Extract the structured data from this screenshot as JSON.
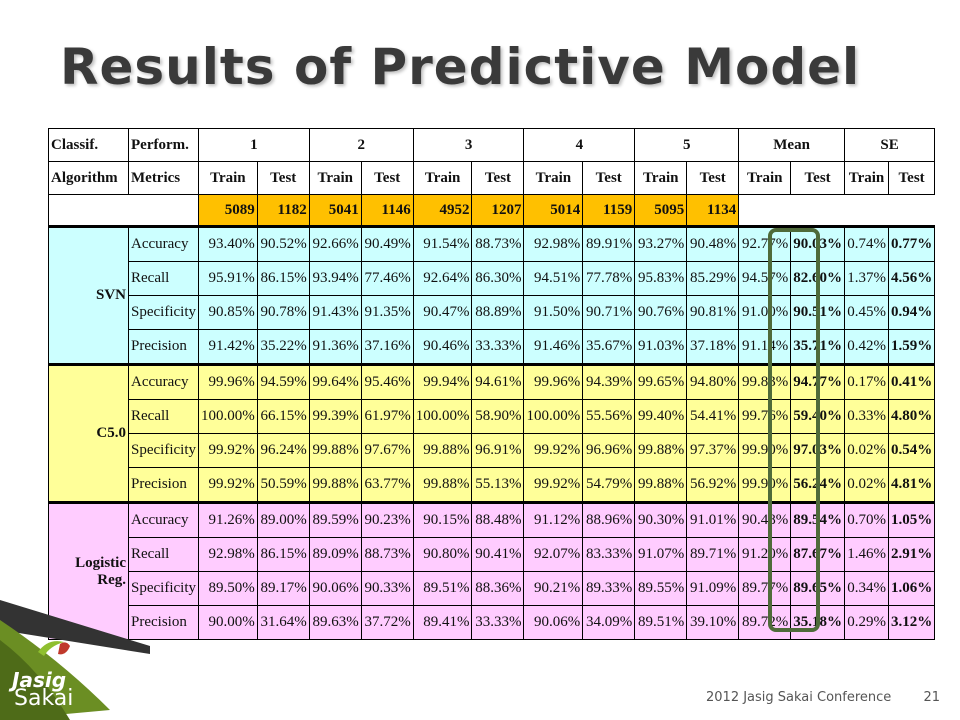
{
  "slide": {
    "title": "Results of Predictive Model",
    "footer_text": "2012 Jasig Sakai Conference",
    "page_number": "21",
    "logo": {
      "line1": "Jasig",
      "line2": "Sakai"
    }
  },
  "table": {
    "header_row1": [
      "Classif.",
      "Perform.",
      "1",
      "2",
      "3",
      "4",
      "5",
      "Mean",
      "SE"
    ],
    "header_row2": [
      "Algorithm",
      "Metrics",
      "Train",
      "Test",
      "Train",
      "Test",
      "Train",
      "Test",
      "Train",
      "Test",
      "Train",
      "Test",
      "Train",
      "Test",
      "Train",
      "Test"
    ],
    "sizes": [
      "5089",
      "1182",
      "5041",
      "1146",
      "4952",
      "1207",
      "5014",
      "1159",
      "5095",
      "1134"
    ],
    "groups": [
      {
        "algorithm": "SVN",
        "rows": [
          {
            "metric": "Accuracy",
            "values": [
              "93.40%",
              "90.52%",
              "92.66%",
              "90.49%",
              "91.54%",
              "88.73%",
              "92.98%",
              "89.91%",
              "93.27%",
              "90.48%",
              "92.77%",
              "90.03%",
              "0.74%",
              "0.77%"
            ]
          },
          {
            "metric": "Recall",
            "values": [
              "95.91%",
              "86.15%",
              "93.94%",
              "77.46%",
              "92.64%",
              "86.30%",
              "94.51%",
              "77.78%",
              "95.83%",
              "85.29%",
              "94.57%",
              "82.60%",
              "1.37%",
              "4.56%"
            ]
          },
          {
            "metric": "Specificity",
            "values": [
              "90.85%",
              "90.78%",
              "91.43%",
              "91.35%",
              "90.47%",
              "88.89%",
              "91.50%",
              "90.71%",
              "90.76%",
              "90.81%",
              "91.00%",
              "90.51%",
              "0.45%",
              "0.94%"
            ]
          },
          {
            "metric": "Precision",
            "values": [
              "91.42%",
              "35.22%",
              "91.36%",
              "37.16%",
              "90.46%",
              "33.33%",
              "91.46%",
              "35.67%",
              "91.03%",
              "37.18%",
              "91.14%",
              "35.71%",
              "0.42%",
              "1.59%"
            ]
          }
        ]
      },
      {
        "algorithm": "C5.0",
        "rows": [
          {
            "metric": "Accuracy",
            "values": [
              "99.96%",
              "94.59%",
              "99.64%",
              "95.46%",
              "99.94%",
              "94.61%",
              "99.96%",
              "94.39%",
              "99.65%",
              "94.80%",
              "99.83%",
              "94.77%",
              "0.17%",
              "0.41%"
            ]
          },
          {
            "metric": "Recall",
            "values": [
              "100.00%",
              "66.15%",
              "99.39%",
              "61.97%",
              "100.00%",
              "58.90%",
              "100.00%",
              "55.56%",
              "99.40%",
              "54.41%",
              "99.76%",
              "59.40%",
              "0.33%",
              "4.80%"
            ]
          },
          {
            "metric": "Specificity",
            "values": [
              "99.92%",
              "96.24%",
              "99.88%",
              "97.67%",
              "99.88%",
              "96.91%",
              "99.92%",
              "96.96%",
              "99.88%",
              "97.37%",
              "99.90%",
              "97.03%",
              "0.02%",
              "0.54%"
            ]
          },
          {
            "metric": "Precision",
            "values": [
              "99.92%",
              "50.59%",
              "99.88%",
              "63.77%",
              "99.88%",
              "55.13%",
              "99.92%",
              "54.79%",
              "99.88%",
              "56.92%",
              "99.90%",
              "56.24%",
              "0.02%",
              "4.81%"
            ]
          }
        ]
      },
      {
        "algorithm": "Logistic Reg.",
        "rows": [
          {
            "metric": "Accuracy",
            "values": [
              "91.26%",
              "89.00%",
              "89.59%",
              "90.23%",
              "90.15%",
              "88.48%",
              "91.12%",
              "88.96%",
              "90.30%",
              "91.01%",
              "90.48%",
              "89.54%",
              "0.70%",
              "1.05%"
            ]
          },
          {
            "metric": "Recall",
            "values": [
              "92.98%",
              "86.15%",
              "89.09%",
              "88.73%",
              "90.80%",
              "90.41%",
              "92.07%",
              "83.33%",
              "91.07%",
              "89.71%",
              "91.20%",
              "87.67%",
              "1.46%",
              "2.91%"
            ]
          },
          {
            "metric": "Specificity",
            "values": [
              "89.50%",
              "89.17%",
              "90.06%",
              "90.33%",
              "89.51%",
              "88.36%",
              "90.21%",
              "89.33%",
              "89.55%",
              "91.09%",
              "89.77%",
              "89.65%",
              "0.34%",
              "1.06%"
            ]
          },
          {
            "metric": "Precision",
            "values": [
              "90.00%",
              "31.64%",
              "89.63%",
              "37.72%",
              "89.41%",
              "33.33%",
              "90.06%",
              "34.09%",
              "89.51%",
              "39.10%",
              "89.72%",
              "35.18%",
              "0.29%",
              "3.12%"
            ]
          }
        ]
      }
    ]
  },
  "colors": {
    "svn_bg": "#ccffff",
    "c50_bg": "#ffff99",
    "logistic_bg": "#ffccff",
    "size_bg": "#ffc000",
    "highlight_border": "#4f6b3a",
    "logo_green": "#6b8e23"
  }
}
